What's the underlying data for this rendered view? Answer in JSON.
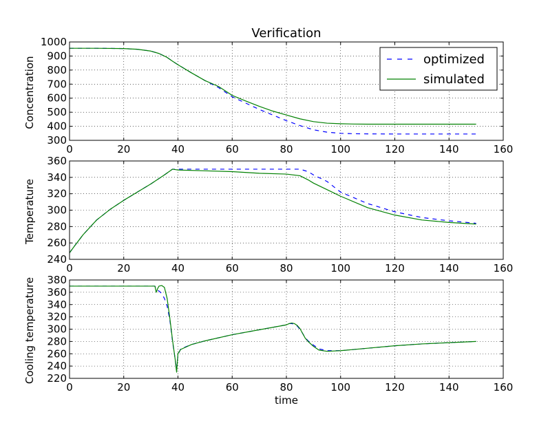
{
  "chart_data": [
    {
      "type": "line",
      "title": "Verification",
      "xlabel": "",
      "ylabel": "Concentration",
      "xlim": [
        0,
        160
      ],
      "ylim": [
        300,
        1000
      ],
      "xticks": [
        0,
        20,
        40,
        60,
        80,
        100,
        120,
        140,
        160
      ],
      "yticks": [
        300,
        400,
        500,
        600,
        700,
        800,
        900,
        1000
      ],
      "grid": true,
      "legend": "top-right",
      "series": [
        {
          "name": "optimized",
          "color": "#0000ff",
          "dashed": true,
          "x": [
            0,
            10,
            20,
            25,
            30,
            33,
            36,
            38,
            40,
            45,
            50,
            55,
            60,
            65,
            70,
            75,
            80,
            85,
            90,
            95,
            100,
            105,
            110,
            120,
            130,
            140,
            150
          ],
          "y": [
            955,
            955,
            953,
            948,
            935,
            918,
            890,
            863,
            838,
            780,
            725,
            675,
            610,
            565,
            520,
            480,
            440,
            405,
            375,
            358,
            350,
            347,
            346,
            345,
            345,
            345,
            345
          ]
        },
        {
          "name": "simulated",
          "color": "#008000",
          "dashed": false,
          "x": [
            0,
            10,
            20,
            25,
            30,
            33,
            36,
            38,
            40,
            45,
            50,
            55,
            60,
            65,
            70,
            75,
            80,
            85,
            90,
            95,
            100,
            105,
            110,
            120,
            130,
            140,
            150
          ],
          "y": [
            955,
            955,
            953,
            948,
            935,
            918,
            890,
            863,
            838,
            780,
            725,
            683,
            620,
            580,
            542,
            508,
            480,
            453,
            433,
            422,
            418,
            416,
            415,
            415,
            415,
            415,
            415
          ]
        }
      ]
    },
    {
      "type": "line",
      "title": "",
      "xlabel": "",
      "ylabel": "Temperature",
      "xlim": [
        0,
        160
      ],
      "ylim": [
        240,
        360
      ],
      "xticks": [
        0,
        20,
        40,
        60,
        80,
        100,
        120,
        140,
        160
      ],
      "yticks": [
        240,
        260,
        280,
        300,
        320,
        340,
        360
      ],
      "grid": true,
      "series": [
        {
          "name": "optimized",
          "color": "#0000ff",
          "dashed": true,
          "x": [
            0,
            2,
            5,
            10,
            15,
            20,
            25,
            30,
            35,
            38,
            40,
            50,
            60,
            70,
            80,
            85,
            88,
            90,
            95,
            100,
            110,
            120,
            130,
            140,
            150
          ],
          "y": [
            248,
            257,
            270,
            288,
            301,
            312,
            322,
            332,
            343,
            350,
            350,
            350,
            350,
            350,
            350,
            350,
            347,
            343,
            335,
            322,
            308,
            298,
            291,
            287,
            284
          ]
        },
        {
          "name": "simulated",
          "color": "#008000",
          "dashed": false,
          "x": [
            0,
            2,
            5,
            10,
            15,
            20,
            25,
            30,
            35,
            38,
            40,
            50,
            60,
            70,
            80,
            85,
            88,
            90,
            95,
            100,
            110,
            120,
            130,
            140,
            150
          ],
          "y": [
            248,
            257,
            270,
            288,
            301,
            312,
            322,
            332,
            343,
            350,
            349,
            348,
            347,
            345,
            344,
            342,
            337,
            333,
            325,
            317,
            303,
            294,
            288,
            285,
            283
          ]
        }
      ]
    },
    {
      "type": "line",
      "title": "",
      "xlabel": "time",
      "ylabel": "Cooling temperature",
      "xlim": [
        0,
        160
      ],
      "ylim": [
        220,
        380
      ],
      "xticks": [
        0,
        20,
        40,
        60,
        80,
        100,
        120,
        140,
        160
      ],
      "yticks": [
        220,
        240,
        260,
        280,
        300,
        320,
        340,
        360,
        380
      ],
      "grid": true,
      "series": [
        {
          "name": "optimized",
          "color": "#0000ff",
          "dashed": true,
          "x": [
            0,
            10,
            20,
            31.5,
            32,
            33,
            34,
            35,
            36,
            37,
            38,
            39,
            39.5,
            40,
            41,
            45,
            50,
            60,
            70,
            80,
            81,
            82,
            83,
            84,
            85,
            86,
            87,
            88,
            90,
            92,
            95,
            100,
            110,
            120,
            130,
            140,
            150
          ],
          "y": [
            370,
            370,
            370,
            370,
            365,
            362,
            358,
            350,
            338,
            315,
            280,
            250,
            235,
            258,
            268,
            275,
            281,
            291,
            299,
            307,
            309,
            309,
            308,
            305,
            300,
            293,
            286,
            281,
            274,
            268,
            265,
            265,
            269,
            273,
            276,
            278,
            280
          ]
        },
        {
          "name": "simulated",
          "color": "#008000",
          "dashed": false,
          "x": [
            0,
            10,
            20,
            31.5,
            32,
            32.5,
            33,
            34,
            35,
            36,
            37,
            38,
            39,
            39.5,
            40,
            41,
            45,
            50,
            60,
            70,
            80,
            81,
            82,
            83,
            84,
            85,
            86,
            87,
            88,
            90,
            92,
            95,
            100,
            110,
            120,
            130,
            140,
            150
          ],
          "y": [
            370,
            370,
            370,
            370,
            360,
            366,
            370,
            371,
            368,
            350,
            318,
            282,
            250,
            230,
            260,
            267,
            275,
            281,
            291,
            299,
            307,
            309,
            310,
            309,
            306,
            301,
            293,
            285,
            280,
            272,
            266,
            264,
            265,
            269,
            273,
            276,
            278,
            280
          ]
        }
      ]
    }
  ]
}
